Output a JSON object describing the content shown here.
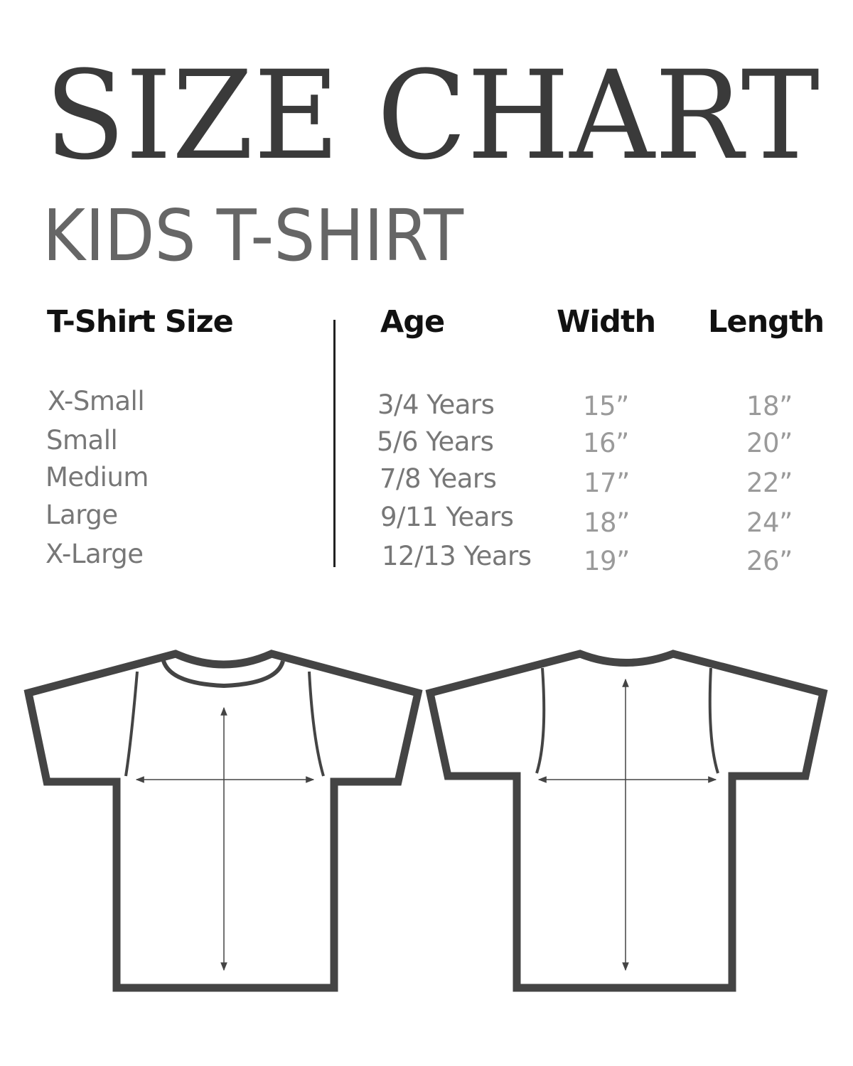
{
  "title": "SIZE CHART",
  "subtitle": "KIDS T-SHIRT",
  "table": {
    "headers": [
      "T-Shirt Size",
      "Age",
      "Width",
      "Length"
    ],
    "rows": [
      {
        "size": "X-Small",
        "age": "3/4 Years",
        "width": "15”",
        "length": "18”"
      },
      {
        "size": "Small",
        "age": "5/6 Years",
        "width": "16”",
        "length": "20”"
      },
      {
        "size": "Medium",
        "age": "7/8 Years",
        "width": "17”",
        "length": "22”"
      },
      {
        "size": "Large",
        "age": "9/11 Years",
        "width": "18”",
        "length": "24”"
      },
      {
        "size": "X-Large",
        "age": "12/13 Years",
        "width": "19”",
        "length": "26”"
      }
    ]
  },
  "colors": {
    "title": "#3a3a3a",
    "subtitle": "#666666",
    "outline": "#444444"
  },
  "diagrams": [
    {
      "view": "front",
      "icon": "tshirt-front-icon"
    },
    {
      "view": "back",
      "icon": "tshirt-back-icon"
    }
  ]
}
